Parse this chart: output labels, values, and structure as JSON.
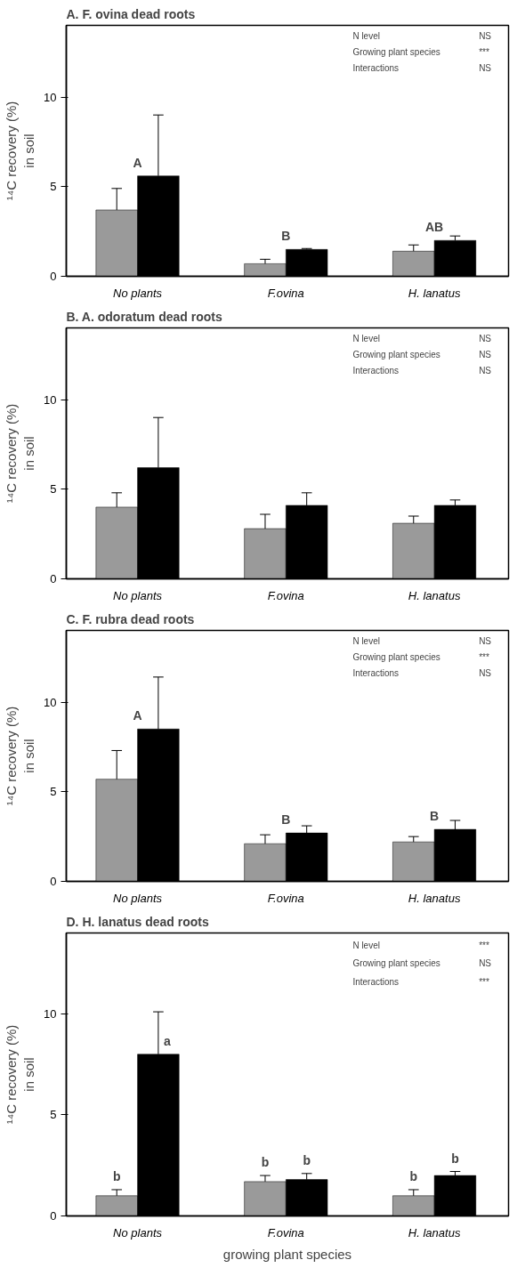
{
  "chart_data": [
    {
      "type": "bar",
      "title": "A. F. ovina dead roots",
      "ylabel": "¹⁴C recovery (%)\nin soil",
      "categories": [
        "No plants",
        "F.ovina",
        "H. lanatus"
      ],
      "ylim": [
        0,
        14
      ],
      "yticks": [
        0,
        5,
        10
      ],
      "series": [
        {
          "color": "#9a9a9a",
          "values": [
            3.7,
            0.7,
            1.4
          ],
          "errors": [
            [
              3.7,
              4.9
            ],
            [
              0.7,
              0.95
            ],
            [
              1.4,
              1.75
            ]
          ]
        },
        {
          "color": "#000000",
          "values": [
            5.6,
            1.5,
            2.0
          ],
          "errors": [
            [
              5.6,
              9.0
            ],
            [
              1.5,
              1.55
            ],
            [
              2.0,
              2.25
            ]
          ]
        }
      ],
      "annotations": [
        "N level",
        "NS",
        "Growing plant species",
        "***",
        "Interactions",
        "NS",
        {
          "text": "A",
          "x": "No plants",
          "y": 5.6
        },
        {
          "text": "B",
          "x": "F.ovina",
          "y": 1.5
        },
        {
          "text": "AB",
          "x": "H. lanatus",
          "y": 2.0
        }
      ]
    },
    {
      "type": "bar",
      "title": "B. A. odoratum dead roots",
      "ylabel": "¹⁴C recovery (%)\nin soil",
      "categories": [
        "No plants",
        "F.ovina",
        "H. lanatus"
      ],
      "ylim": [
        0,
        14
      ],
      "yticks": [
        0,
        5,
        10
      ],
      "series": [
        {
          "color": "#9a9a9a",
          "values": [
            4.0,
            2.8,
            3.1
          ],
          "errors": [
            [
              4.0,
              4.8
            ],
            [
              2.8,
              3.6
            ],
            [
              3.1,
              3.5
            ]
          ]
        },
        {
          "color": "#000000",
          "values": [
            6.2,
            4.1,
            4.1
          ],
          "errors": [
            [
              6.2,
              9.0
            ],
            [
              4.1,
              4.8
            ],
            [
              4.1,
              4.4
            ]
          ]
        }
      ],
      "annotations": [
        "N level",
        "NS",
        "Growing plant species",
        "NS",
        "Interactions",
        "NS"
      ]
    },
    {
      "type": "bar",
      "title": "C. F. rubra dead roots",
      "ylabel": "¹⁴C recovery (%)\nin soil",
      "categories": [
        "No plants",
        "F.ovina",
        "H. lanatus"
      ],
      "ylim": [
        0,
        14
      ],
      "yticks": [
        0,
        5,
        10
      ],
      "series": [
        {
          "color": "#9a9a9a",
          "values": [
            5.7,
            2.1,
            2.2
          ],
          "errors": [
            [
              5.7,
              7.3
            ],
            [
              2.1,
              2.6
            ],
            [
              2.2,
              2.5
            ]
          ]
        },
        {
          "color": "#000000",
          "values": [
            8.5,
            2.7,
            2.9
          ],
          "errors": [
            [
              8.5,
              11.4
            ],
            [
              2.7,
              3.1
            ],
            [
              2.9,
              3.4
            ]
          ]
        }
      ],
      "annotations": [
        "N level",
        "NS",
        "Growing plant species",
        "***",
        "Interactions",
        "NS",
        {
          "text": "A",
          "x": "No plants",
          "y": 8.5
        },
        {
          "text": "B",
          "x": "F.ovina",
          "y": 2.7
        },
        {
          "text": "B",
          "x": "H. lanatus",
          "y": 2.9
        }
      ]
    },
    {
      "type": "bar",
      "title": "D. H. lanatus dead roots",
      "ylabel": "¹⁴C recovery (%)\nin soil",
      "xlabel": "growing plant species",
      "categories": [
        "No plants",
        "F.ovina",
        "H. lanatus"
      ],
      "ylim": [
        0,
        14
      ],
      "yticks": [
        0,
        5,
        10
      ],
      "series": [
        {
          "color": "#9a9a9a",
          "values": [
            1.0,
            1.7,
            1.0
          ],
          "errors": [
            [
              1.0,
              1.3
            ],
            [
              1.7,
              2.0
            ],
            [
              1.0,
              1.3
            ]
          ]
        },
        {
          "color": "#000000",
          "values": [
            8.0,
            1.8,
            2.0
          ],
          "errors": [
            [
              8.0,
              10.1
            ],
            [
              1.8,
              2.1
            ],
            [
              2.0,
              2.2
            ]
          ]
        }
      ],
      "annotations": [
        "N level",
        "***",
        "Growing plant species",
        "NS",
        "Interactions",
        "***",
        {
          "text": "b",
          "x": "No plants",
          "y": 1.0
        },
        {
          "text": "a",
          "x": "No plants",
          "y": 8.0
        },
        {
          "text": "b",
          "x": "F.ovina",
          "y": 1.7
        },
        {
          "text": "b",
          "x": "F.ovina",
          "y": 1.8
        },
        {
          "text": "b",
          "x": "H. lanatus",
          "y": 1.0
        },
        {
          "text": "b",
          "x": "H. lanatus",
          "y": 2.0
        }
      ]
    }
  ]
}
